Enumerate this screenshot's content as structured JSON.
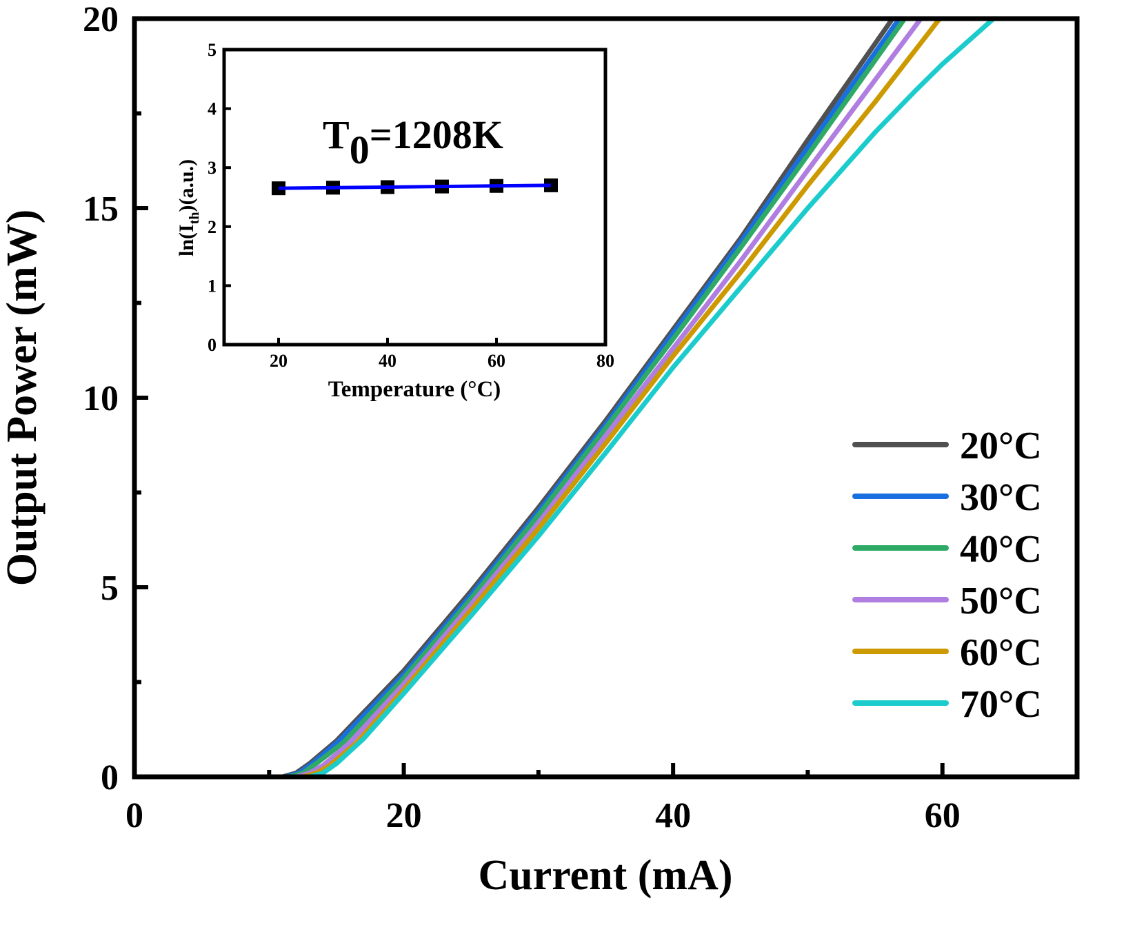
{
  "chart_data": [
    {
      "type": "line",
      "xlabel": "Current (mA)",
      "ylabel": "Output Power (mW)",
      "xlim": [
        0,
        70
      ],
      "ylim": [
        0,
        20
      ],
      "xticks": [
        "0",
        "20",
        "40",
        "60"
      ],
      "yticks": [
        "0",
        "5",
        "10",
        "15",
        "20"
      ],
      "grid": false,
      "legend_position": "right",
      "series": [
        {
          "name": "20°C",
          "color": "#505050",
          "points": [
            [
              0,
              0
            ],
            [
              11,
              0
            ],
            [
              12,
              0.1
            ],
            [
              13,
              0.35
            ],
            [
              15,
              0.95
            ],
            [
              20,
              2.8
            ],
            [
              25,
              4.9
            ],
            [
              30,
              7.1
            ],
            [
              35,
              9.4
            ],
            [
              40,
              11.8
            ],
            [
              45,
              14.2
            ],
            [
              50,
              16.8
            ],
            [
              56.3,
              20
            ]
          ]
        },
        {
          "name": "30°C",
          "color": "#1a6fe0",
          "points": [
            [
              0,
              0
            ],
            [
              11.2,
              0
            ],
            [
              12.2,
              0.1
            ],
            [
              13.2,
              0.35
            ],
            [
              15.2,
              0.95
            ],
            [
              20,
              2.7
            ],
            [
              25,
              4.8
            ],
            [
              30,
              7.0
            ],
            [
              35,
              9.3
            ],
            [
              40,
              11.7
            ],
            [
              45,
              14.1
            ],
            [
              50,
              16.6
            ],
            [
              56.8,
              20
            ]
          ]
        },
        {
          "name": "40°C",
          "color": "#2faa66",
          "points": [
            [
              0,
              0
            ],
            [
              11.5,
              0
            ],
            [
              12.5,
              0.1
            ],
            [
              13.5,
              0.35
            ],
            [
              15.5,
              0.9
            ],
            [
              20,
              2.6
            ],
            [
              25,
              4.7
            ],
            [
              30,
              6.9
            ],
            [
              35,
              9.2
            ],
            [
              40,
              11.55
            ],
            [
              45,
              13.95
            ],
            [
              50,
              16.4
            ],
            [
              57.2,
              20
            ]
          ]
        },
        {
          "name": "50°C",
          "color": "#b07ee0",
          "points": [
            [
              0,
              0
            ],
            [
              12,
              0
            ],
            [
              13,
              0.1
            ],
            [
              14,
              0.3
            ],
            [
              16,
              0.9
            ],
            [
              20,
              2.45
            ],
            [
              25,
              4.55
            ],
            [
              30,
              6.7
            ],
            [
              35,
              9.0
            ],
            [
              40,
              11.3
            ],
            [
              45,
              13.6
            ],
            [
              50,
              16.0
            ],
            [
              58.4,
              20
            ]
          ]
        },
        {
          "name": "60°C",
          "color": "#cc9900",
          "points": [
            [
              0,
              0
            ],
            [
              12.5,
              0
            ],
            [
              13.5,
              0.1
            ],
            [
              14.5,
              0.3
            ],
            [
              16.5,
              0.9
            ],
            [
              20,
              2.3
            ],
            [
              25,
              4.4
            ],
            [
              30,
              6.55
            ],
            [
              35,
              8.8
            ],
            [
              40,
              11.1
            ],
            [
              45,
              13.3
            ],
            [
              50,
              15.6
            ],
            [
              55,
              17.8
            ],
            [
              59.8,
              20
            ]
          ]
        },
        {
          "name": "70°C",
          "color": "#1ccccc",
          "points": [
            [
              0,
              0
            ],
            [
              13,
              0
            ],
            [
              14,
              0.1
            ],
            [
              15,
              0.35
            ],
            [
              17,
              1.0
            ],
            [
              20,
              2.2
            ],
            [
              25,
              4.25
            ],
            [
              30,
              6.35
            ],
            [
              35,
              8.55
            ],
            [
              40,
              10.8
            ],
            [
              45,
              12.9
            ],
            [
              50,
              15.0
            ],
            [
              55,
              17.0
            ],
            [
              58,
              18.1
            ],
            [
              60,
              18.8
            ],
            [
              63.8,
              20
            ]
          ]
        }
      ]
    },
    {
      "type": "scatter",
      "inset": true,
      "xlabel": "Temperature (°C)",
      "ylabel_main": "ln(I",
      "ylabel_sub": "th",
      "ylabel_rest": ")(a.u.)",
      "xlim": [
        10,
        80
      ],
      "ylim": [
        0,
        5
      ],
      "xticks": [
        "20",
        "40",
        "60",
        "80"
      ],
      "yticks": [
        "0",
        "1",
        "2",
        "3",
        "4",
        "5"
      ],
      "annotation_main": "T",
      "annotation_sub": "0",
      "annotation_rest": "=1208K",
      "marker_color": "#000000",
      "fit_color": "#0000ff",
      "x": [
        20,
        30,
        40,
        50,
        60,
        70
      ],
      "y": [
        2.65,
        2.66,
        2.67,
        2.68,
        2.69,
        2.7
      ]
    }
  ]
}
